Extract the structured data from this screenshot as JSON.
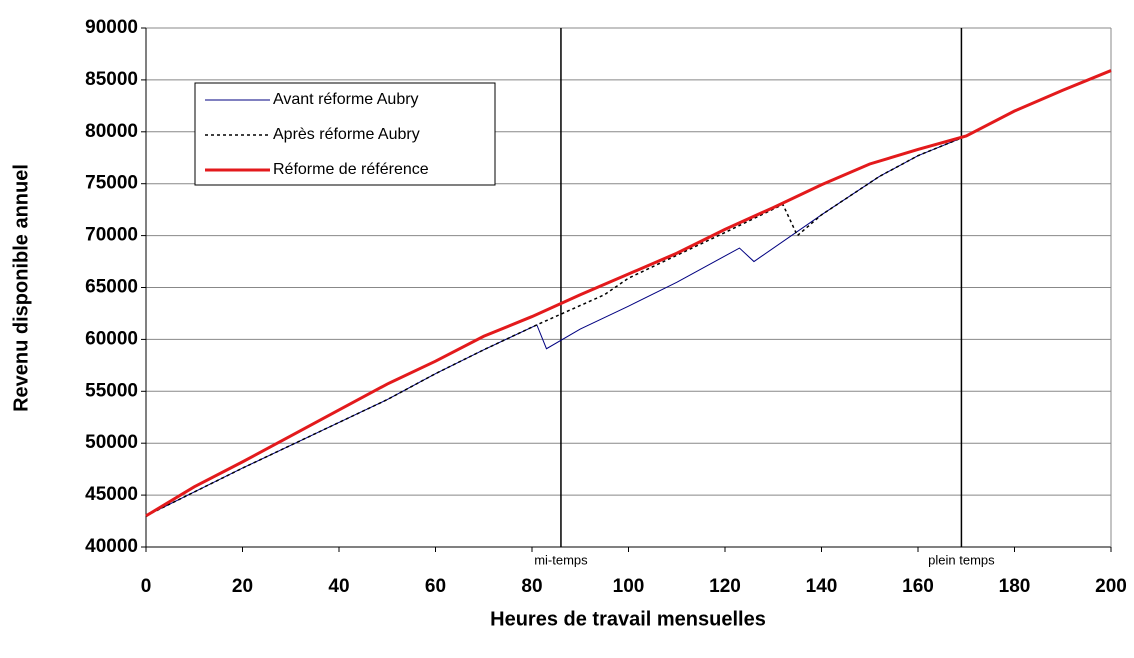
{
  "chart_data": {
    "type": "line",
    "xlabel": "Heures de travail mensuelles",
    "ylabel": "Revenu disponible annuel",
    "xlim": [
      0,
      200
    ],
    "xticks": [
      0,
      20,
      40,
      60,
      80,
      100,
      120,
      140,
      160,
      180,
      200
    ],
    "ylim": [
      40000,
      90000
    ],
    "yticks": [
      40000,
      45000,
      50000,
      55000,
      60000,
      65000,
      70000,
      75000,
      80000,
      85000,
      90000
    ],
    "grid": true,
    "legend": "upper left",
    "annotations": [
      {
        "x": 86,
        "label": "mi-temps"
      },
      {
        "x": 169,
        "label": "plein temps"
      }
    ],
    "series": [
      {
        "name": "Avant réforme Aubry",
        "color": "#000080",
        "style": "solid",
        "width": 1,
        "x": [
          0,
          10,
          20,
          30,
          40,
          50,
          60,
          70,
          81,
          83,
          90,
          100,
          110,
          123,
          126,
          140,
          152,
          160,
          169,
          180,
          190,
          200
        ],
        "values": [
          43000,
          45300,
          47600,
          49800,
          52000,
          54200,
          56700,
          59000,
          61400,
          59100,
          61000,
          63200,
          65500,
          68800,
          67500,
          72000,
          75700,
          77700,
          79400,
          82000,
          84000,
          85900
        ]
      },
      {
        "name": "Après réforme Aubry",
        "color": "#000000",
        "style": "dotted",
        "width": 1.5,
        "x": [
          0,
          10,
          20,
          30,
          40,
          50,
          60,
          70,
          81,
          95,
          100,
          110,
          120,
          132,
          135,
          140,
          152,
          160,
          169,
          180,
          190,
          200
        ],
        "values": [
          43000,
          45300,
          47600,
          49800,
          52000,
          54200,
          56700,
          59000,
          61400,
          64300,
          65900,
          68100,
          70300,
          73000,
          70000,
          72000,
          75700,
          77700,
          79400,
          82000,
          84000,
          85900
        ]
      },
      {
        "name": "Réforme de référence",
        "color": "#e31a1c",
        "style": "solid",
        "width": 3,
        "x": [
          0,
          10,
          20,
          30,
          40,
          50,
          60,
          70,
          80,
          90,
          100,
          110,
          120,
          130,
          140,
          150,
          160,
          170,
          180,
          190,
          200
        ],
        "values": [
          43000,
          45800,
          48200,
          50700,
          53200,
          55700,
          57900,
          60300,
          62200,
          64300,
          66300,
          68300,
          70600,
          72700,
          74900,
          76900,
          78300,
          79600,
          82000,
          84000,
          85900
        ]
      }
    ]
  }
}
